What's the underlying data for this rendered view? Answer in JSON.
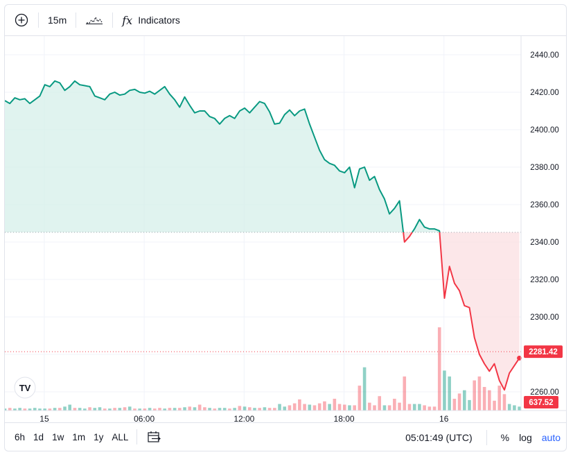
{
  "toolbar": {
    "add_icon": "plus-circle-icon",
    "interval": "15m",
    "chart_type_icon": "line-chart-icon",
    "fx_icon": "fx",
    "indicators_label": "Indicators"
  },
  "bottom": {
    "ranges": [
      "6h",
      "1d",
      "1w",
      "1m",
      "1y",
      "ALL"
    ],
    "goto_icon": "calendar-arrow-icon",
    "time": "05:01:49 (UTC)",
    "percent": "%",
    "log": "log",
    "auto": "auto"
  },
  "logo": "TV",
  "colors": {
    "up": "#089981",
    "down": "#f23645",
    "up_fill": "#d6efe9",
    "down_fill": "#fbdfe2"
  },
  "chart_data": {
    "type": "area",
    "ylim": [
      2250,
      2450
    ],
    "y_ticks": [
      2260,
      2280,
      2300,
      2320,
      2340,
      2360,
      2380,
      2400,
      2420,
      2440
    ],
    "y_tick_labels": [
      "2260.00",
      "2280.00",
      "2300.00",
      "2320.00",
      "2340.00",
      "2360.00",
      "2380.00",
      "2400.00",
      "2420.00",
      "2440.00"
    ],
    "x_labels": [
      {
        "label": "15",
        "t": 0.07
      },
      {
        "label": "06:00",
        "t": 6.07
      },
      {
        "label": "12:00",
        "t": 12.07
      },
      {
        "label": "18:00",
        "t": 18.07
      },
      {
        "label": "16",
        "t": 24.07
      }
    ],
    "t_range": [
      -2.3,
      28.7
    ],
    "baseline": 2345.2,
    "last_price": 2281.42,
    "last_price_label": "2281.42",
    "volume_label": "637.52",
    "series": [
      {
        "t": [
          -2.3,
          -2.0,
          -1.7,
          -1.4,
          -1.1,
          -0.8,
          -0.5,
          -0.2,
          0.1,
          0.4,
          0.7,
          1.0,
          1.3,
          1.6,
          1.9,
          2.2,
          2.5,
          2.8,
          3.1,
          3.4,
          3.7,
          4.0,
          4.3,
          4.6,
          4.9,
          5.2,
          5.5,
          5.8,
          6.1,
          6.4,
          6.7,
          7.0,
          7.3,
          7.6,
          7.9,
          8.2,
          8.5,
          8.8,
          9.1,
          9.4,
          9.7,
          10.0,
          10.3,
          10.6,
          10.9,
          11.2,
          11.5,
          11.8,
          12.1,
          12.4,
          12.7,
          13.0,
          13.3,
          13.6,
          13.9,
          14.2,
          14.5,
          14.8,
          15.1,
          15.4,
          15.7,
          16.0,
          16.3,
          16.6,
          16.9,
          17.2,
          17.5,
          17.8,
          18.1,
          18.4,
          18.7,
          19.0,
          19.3,
          19.6,
          19.9,
          20.2,
          20.5,
          20.8,
          21.1,
          21.4,
          21.7,
          22.0,
          22.3,
          22.6,
          22.9,
          23.2,
          23.5,
          23.8,
          24.1,
          24.4,
          24.7,
          25.0,
          25.3,
          25.6,
          25.9,
          26.2,
          26.5,
          26.8,
          27.1,
          27.4,
          27.7,
          28.0,
          28.3,
          28.6
        ],
        "values": [
          2415.5,
          2414,
          2417,
          2416,
          2416.5,
          2414,
          2416,
          2418,
          2424,
          2423,
          2426,
          2425,
          2421,
          2423,
          2426,
          2424,
          2423.5,
          2423,
          2418,
          2417,
          2416,
          2419,
          2420,
          2418.5,
          2419,
          2421,
          2421.5,
          2420,
          2419.5,
          2420.5,
          2419,
          2421,
          2423,
          2419,
          2416,
          2412,
          2417.5,
          2413,
          2409,
          2410,
          2410,
          2407,
          2406,
          2403,
          2406,
          2407.5,
          2406,
          2410,
          2411.5,
          2409,
          2412,
          2415,
          2414,
          2409.5,
          2403,
          2403.5,
          2408,
          2410.5,
          2407.5,
          2410,
          2411,
          2403,
          2396,
          2389,
          2384,
          2382,
          2381,
          2378,
          2377,
          2380,
          2369,
          2379,
          2380,
          2373,
          2375,
          2368,
          2363,
          2355,
          2358,
          2362,
          2340,
          2343,
          2347,
          2352,
          2348,
          2347,
          2347,
          2346,
          2310,
          2327,
          2318,
          2314,
          2306,
          2305,
          2289,
          2280,
          2275,
          2271,
          2275,
          2266,
          2261,
          2270,
          2274,
          2278
        ]
      }
    ],
    "volume": [
      {
        "t": -2.3,
        "v": 3,
        "up": true
      },
      {
        "t": -2.0,
        "v": 4,
        "up": false
      },
      {
        "t": -1.7,
        "v": 3,
        "up": true
      },
      {
        "t": -1.4,
        "v": 4,
        "up": true
      },
      {
        "t": -1.1,
        "v": 3,
        "up": false
      },
      {
        "t": -0.8,
        "v": 3,
        "up": true
      },
      {
        "t": -0.5,
        "v": 4,
        "up": true
      },
      {
        "t": -0.2,
        "v": 3,
        "up": true
      },
      {
        "t": 0.1,
        "v": 3,
        "up": true
      },
      {
        "t": 0.4,
        "v": 3,
        "up": false
      },
      {
        "t": 0.7,
        "v": 4,
        "up": true
      },
      {
        "t": 1.0,
        "v": 4,
        "up": false
      },
      {
        "t": 1.3,
        "v": 6,
        "up": true
      },
      {
        "t": 1.6,
        "v": 9,
        "up": true
      },
      {
        "t": 1.9,
        "v": 4,
        "up": false
      },
      {
        "t": 2.2,
        "v": 4,
        "up": true
      },
      {
        "t": 2.5,
        "v": 3,
        "up": true
      },
      {
        "t": 2.8,
        "v": 5,
        "up": false
      },
      {
        "t": 3.1,
        "v": 4,
        "up": true
      },
      {
        "t": 3.4,
        "v": 5,
        "up": true
      },
      {
        "t": 3.7,
        "v": 3,
        "up": false
      },
      {
        "t": 4.0,
        "v": 3,
        "up": true
      },
      {
        "t": 4.3,
        "v": 4,
        "up": false
      },
      {
        "t": 4.6,
        "v": 4,
        "up": true
      },
      {
        "t": 4.9,
        "v": 5,
        "up": false
      },
      {
        "t": 5.2,
        "v": 6,
        "up": true
      },
      {
        "t": 5.5,
        "v": 3,
        "up": false
      },
      {
        "t": 5.8,
        "v": 3,
        "up": true
      },
      {
        "t": 6.1,
        "v": 3,
        "up": false
      },
      {
        "t": 6.4,
        "v": 4,
        "up": true
      },
      {
        "t": 6.7,
        "v": 3,
        "up": false
      },
      {
        "t": 7.0,
        "v": 4,
        "up": false
      },
      {
        "t": 7.3,
        "v": 3,
        "up": true
      },
      {
        "t": 7.6,
        "v": 4,
        "up": false
      },
      {
        "t": 7.9,
        "v": 4,
        "up": true
      },
      {
        "t": 8.2,
        "v": 4,
        "up": false
      },
      {
        "t": 8.5,
        "v": 5,
        "up": true
      },
      {
        "t": 8.8,
        "v": 6,
        "up": false
      },
      {
        "t": 9.1,
        "v": 5,
        "up": true
      },
      {
        "t": 9.4,
        "v": 9,
        "up": false
      },
      {
        "t": 9.7,
        "v": 5,
        "up": false
      },
      {
        "t": 10.0,
        "v": 4,
        "up": true
      },
      {
        "t": 10.3,
        "v": 3,
        "up": false
      },
      {
        "t": 10.6,
        "v": 4,
        "up": true
      },
      {
        "t": 10.9,
        "v": 4,
        "up": true
      },
      {
        "t": 11.2,
        "v": 3,
        "up": false
      },
      {
        "t": 11.5,
        "v": 4,
        "up": true
      },
      {
        "t": 11.8,
        "v": 7,
        "up": false
      },
      {
        "t": 12.1,
        "v": 6,
        "up": true
      },
      {
        "t": 12.4,
        "v": 5,
        "up": false
      },
      {
        "t": 12.7,
        "v": 4,
        "up": true
      },
      {
        "t": 13.0,
        "v": 4,
        "up": false
      },
      {
        "t": 13.3,
        "v": 5,
        "up": true
      },
      {
        "t": 13.6,
        "v": 4,
        "up": false
      },
      {
        "t": 13.9,
        "v": 4,
        "up": false
      },
      {
        "t": 14.2,
        "v": 10,
        "up": true
      },
      {
        "t": 14.5,
        "v": 6,
        "up": true
      },
      {
        "t": 14.8,
        "v": 8,
        "up": false
      },
      {
        "t": 15.1,
        "v": 11,
        "up": false
      },
      {
        "t": 15.4,
        "v": 17,
        "up": false
      },
      {
        "t": 15.7,
        "v": 10,
        "up": false
      },
      {
        "t": 16.0,
        "v": 9,
        "up": true
      },
      {
        "t": 16.3,
        "v": 8,
        "up": false
      },
      {
        "t": 16.6,
        "v": 11,
        "up": false
      },
      {
        "t": 16.9,
        "v": 14,
        "up": false
      },
      {
        "t": 17.2,
        "v": 10,
        "up": true
      },
      {
        "t": 17.5,
        "v": 18,
        "up": false
      },
      {
        "t": 17.8,
        "v": 10,
        "up": false
      },
      {
        "t": 18.1,
        "v": 9,
        "up": false
      },
      {
        "t": 18.4,
        "v": 8,
        "up": true
      },
      {
        "t": 18.7,
        "v": 8,
        "up": false
      },
      {
        "t": 19.0,
        "v": 38,
        "up": false
      },
      {
        "t": 19.3,
        "v": 66,
        "up": true
      },
      {
        "t": 19.6,
        "v": 12,
        "up": false
      },
      {
        "t": 19.9,
        "v": 8,
        "up": false
      },
      {
        "t": 20.2,
        "v": 22,
        "up": false
      },
      {
        "t": 20.5,
        "v": 8,
        "up": true
      },
      {
        "t": 20.8,
        "v": 8,
        "up": false
      },
      {
        "t": 21.1,
        "v": 18,
        "up": false
      },
      {
        "t": 21.4,
        "v": 12,
        "up": false
      },
      {
        "t": 21.7,
        "v": 52,
        "up": false
      },
      {
        "t": 22.0,
        "v": 10,
        "up": false
      },
      {
        "t": 22.3,
        "v": 10,
        "up": true
      },
      {
        "t": 22.6,
        "v": 10,
        "up": true
      },
      {
        "t": 22.9,
        "v": 8,
        "up": false
      },
      {
        "t": 23.2,
        "v": 6,
        "up": false
      },
      {
        "t": 23.5,
        "v": 6,
        "up": false
      },
      {
        "t": 23.8,
        "v": 127,
        "up": false
      },
      {
        "t": 24.1,
        "v": 61,
        "up": true
      },
      {
        "t": 24.4,
        "v": 52,
        "up": true
      },
      {
        "t": 24.7,
        "v": 18,
        "up": false
      },
      {
        "t": 25.0,
        "v": 26,
        "up": false
      },
      {
        "t": 25.3,
        "v": 31,
        "up": true
      },
      {
        "t": 25.6,
        "v": 16,
        "up": true
      },
      {
        "t": 25.9,
        "v": 46,
        "up": false
      },
      {
        "t": 26.2,
        "v": 52,
        "up": false
      },
      {
        "t": 26.5,
        "v": 36,
        "up": false
      },
      {
        "t": 26.8,
        "v": 31,
        "up": false
      },
      {
        "t": 27.1,
        "v": 15,
        "up": false
      },
      {
        "t": 27.4,
        "v": 38,
        "up": false
      },
      {
        "t": 27.7,
        "v": 25,
        "up": false
      },
      {
        "t": 28.0,
        "v": 10,
        "up": true
      },
      {
        "t": 28.3,
        "v": 8,
        "up": true
      },
      {
        "t": 28.6,
        "v": 6,
        "up": true
      }
    ]
  }
}
